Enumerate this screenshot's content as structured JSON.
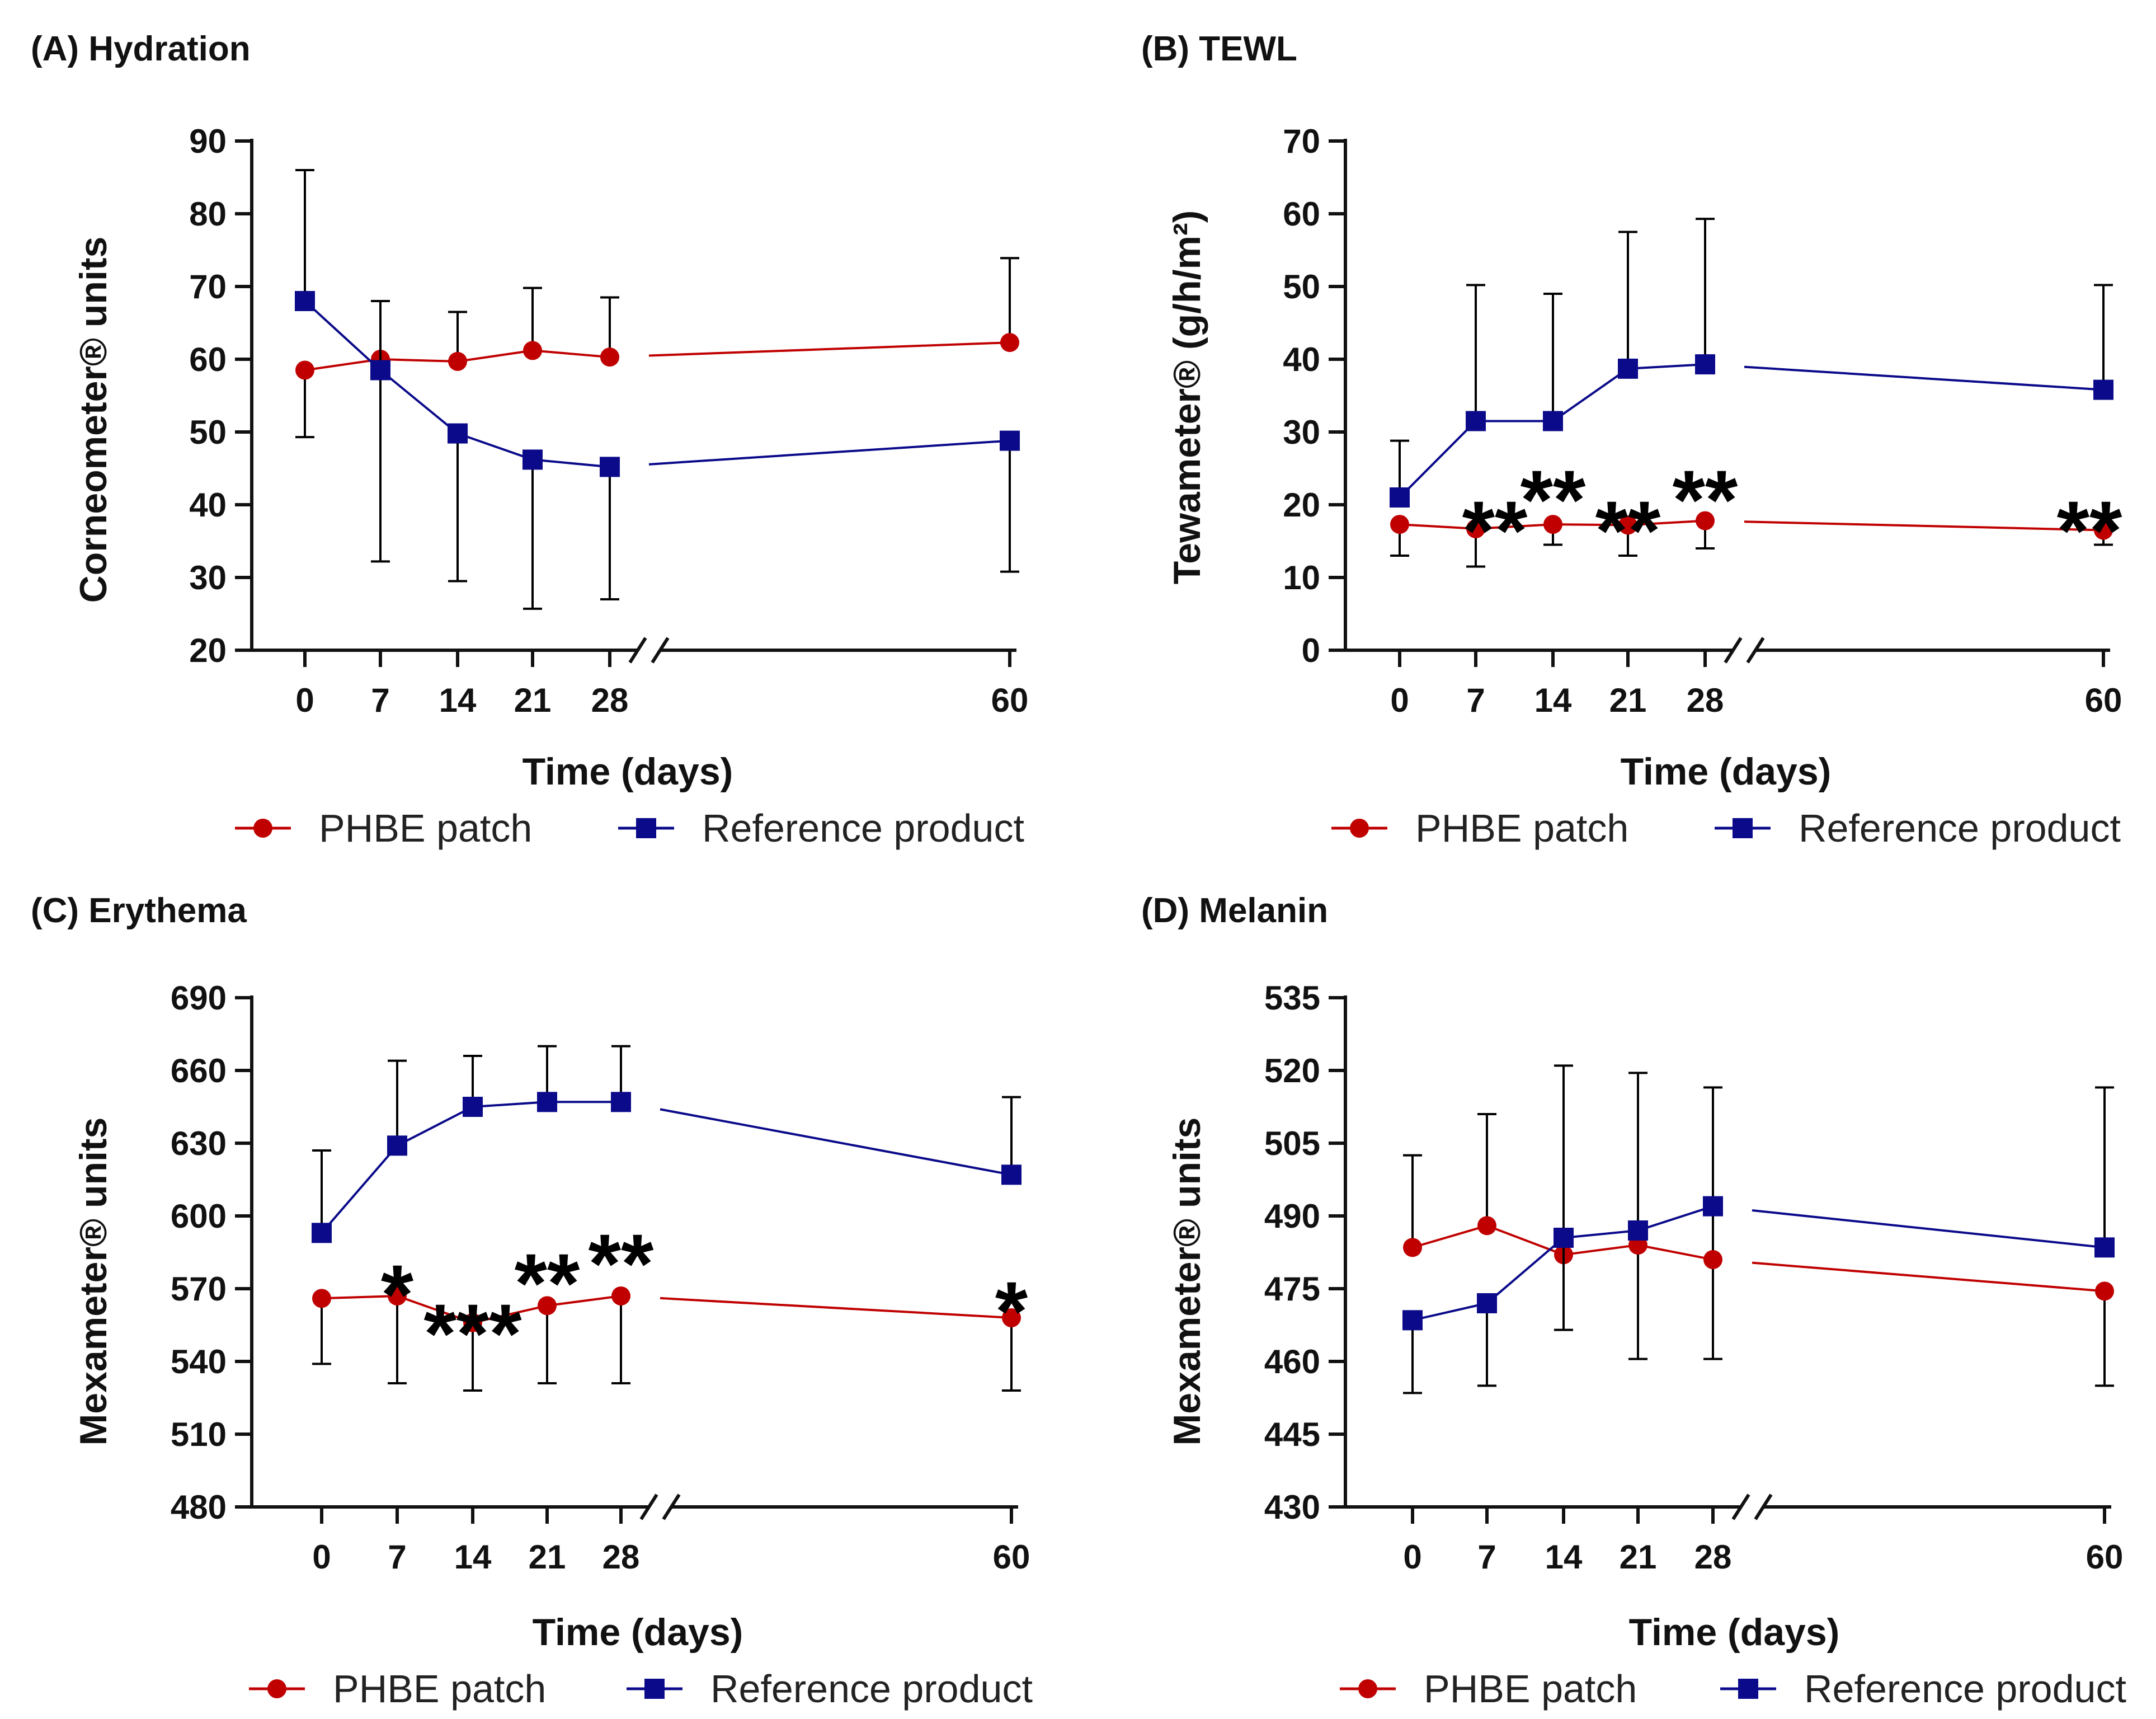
{
  "colors": {
    "phbe": "#c00000",
    "reference": "#0a0a8a",
    "axis": "#111111"
  },
  "legend": {
    "phbe_label": "PHBE patch",
    "reference_label": "Reference product"
  },
  "chart_data": [
    {
      "panel": "A",
      "title": "(A) Hydration",
      "type": "line",
      "ylabel": "Corneometer® units",
      "xlabel": "Time (days)",
      "ylim": [
        20,
        90
      ],
      "yticks": [
        20,
        30,
        40,
        50,
        60,
        70,
        80,
        90
      ],
      "x": [
        0,
        7,
        14,
        21,
        28,
        60
      ],
      "x_ticks": [
        "0",
        "7",
        "14",
        "21",
        "28",
        "60"
      ],
      "axis_break": "between 28 and 60",
      "series": [
        {
          "name": "PHBE patch",
          "values": [
            58.5,
            60,
            59.7,
            61.2,
            60.3,
            62.3
          ],
          "err_up": [
            null,
            null,
            6.8,
            8.6,
            8.2,
            11.6
          ],
          "err_down": [
            9.2,
            null,
            null,
            null,
            null,
            null
          ]
        },
        {
          "name": "Reference product",
          "values": [
            68,
            58.5,
            49.8,
            46.2,
            45.2,
            48.8
          ],
          "err_up": [
            18,
            9.5,
            null,
            null,
            null,
            null
          ],
          "err_down": [
            null,
            26.3,
            20.3,
            20.5,
            18.2,
            18
          ]
        }
      ],
      "annotations": []
    },
    {
      "panel": "B",
      "title": "(B) TEWL",
      "type": "line",
      "ylabel": "Tewameter® (g/h/m²)",
      "xlabel": "Time (days)",
      "ylim": [
        0,
        70
      ],
      "yticks": [
        0,
        10,
        20,
        30,
        40,
        50,
        60,
        70
      ],
      "x": [
        0,
        7,
        14,
        21,
        28,
        60
      ],
      "x_ticks": [
        "0",
        "7",
        "14",
        "21",
        "28",
        "60"
      ],
      "axis_break": "between 28 and 60",
      "series": [
        {
          "name": "PHBE patch",
          "values": [
            17.3,
            16.7,
            17.3,
            17.2,
            17.8,
            16.5
          ],
          "err_up": [
            null,
            null,
            null,
            null,
            null,
            null
          ],
          "err_down": [
            4.3,
            5.2,
            2.8,
            4.2,
            3.8,
            2
          ]
        },
        {
          "name": "Reference product",
          "values": [
            21,
            31.5,
            31.5,
            38.7,
            39.3,
            35.8
          ],
          "err_up": [
            7.8,
            18.7,
            17.5,
            18.8,
            20,
            14.4
          ],
          "err_down": [
            null,
            null,
            null,
            null,
            null,
            null
          ]
        }
      ],
      "annotations": [
        {
          "x": 7,
          "text": "**"
        },
        {
          "x": 14,
          "text": "**"
        },
        {
          "x": 21,
          "text": "**"
        },
        {
          "x": 28,
          "text": "**"
        },
        {
          "x": 60,
          "text": "**"
        }
      ]
    },
    {
      "panel": "C",
      "title": "(C) Erythema",
      "type": "line",
      "ylabel": "Mexameter® units",
      "xlabel": "Time (days)",
      "ylim": [
        480,
        690
      ],
      "yticks": [
        480,
        510,
        540,
        570,
        600,
        630,
        660,
        690
      ],
      "x": [
        0,
        7,
        14,
        21,
        28,
        60
      ],
      "x_ticks": [
        "0",
        "7",
        "14",
        "21",
        "28",
        "60"
      ],
      "axis_break": "between 28 and 60",
      "series": [
        {
          "name": "PHBE patch",
          "values": [
            566,
            567,
            556,
            563,
            567,
            558
          ],
          "err_up": [
            null,
            null,
            null,
            null,
            null,
            null
          ],
          "err_down": [
            27,
            36,
            28,
            32,
            36,
            30
          ]
        },
        {
          "name": "Reference product",
          "values": [
            593,
            629,
            645,
            647,
            647,
            617
          ],
          "err_up": [
            34,
            35,
            21,
            23,
            23,
            32
          ],
          "err_down": [
            null,
            null,
            null,
            null,
            null,
            null
          ]
        }
      ],
      "annotations": [
        {
          "x": 7,
          "text": "*"
        },
        {
          "x": 14,
          "text": "***"
        },
        {
          "x": 21,
          "text": "**"
        },
        {
          "x": 28,
          "text": "**"
        },
        {
          "x": 60,
          "text": "*"
        }
      ]
    },
    {
      "panel": "D",
      "title": "(D) Melanin",
      "type": "line",
      "ylabel": "Mexameter® units",
      "xlabel": "Time (days)",
      "ylim": [
        430,
        535
      ],
      "yticks": [
        430,
        445,
        460,
        475,
        490,
        505,
        520,
        535
      ],
      "x": [
        0,
        7,
        14,
        21,
        28,
        60
      ],
      "x_ticks": [
        "0",
        "7",
        "14",
        "21",
        "28",
        "60"
      ],
      "axis_break": "between 28 and 60",
      "series": [
        {
          "name": "PHBE patch",
          "values": [
            483.5,
            488,
            482,
            484,
            481,
            474.5
          ],
          "err_up": [
            19,
            23,
            null,
            null,
            35.5,
            null
          ],
          "err_down": [
            null,
            null,
            null,
            23.5,
            20.5,
            19.5
          ]
        },
        {
          "name": "Reference product",
          "values": [
            468.5,
            472,
            485.5,
            487,
            492,
            483.5
          ],
          "err_up": [
            null,
            null,
            35.5,
            32.5,
            null,
            33
          ],
          "err_down": [
            15,
            17,
            19,
            null,
            null,
            null
          ]
        }
      ],
      "annotations": []
    }
  ]
}
